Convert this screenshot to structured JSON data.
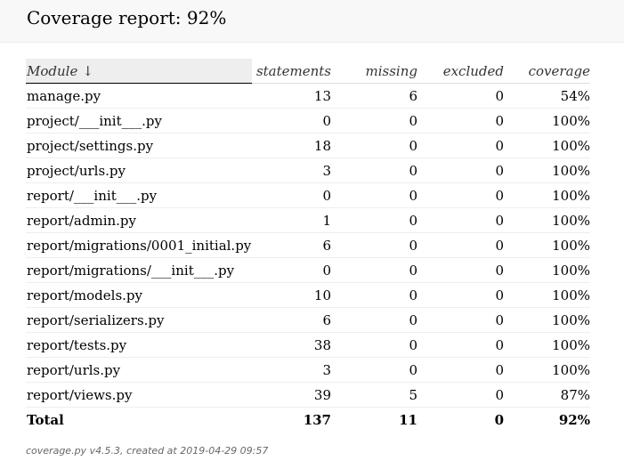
{
  "header": {
    "title": "Coverage report: 92%"
  },
  "table": {
    "columns": {
      "module": "Module",
      "sort_indicator": "↓",
      "statements": "statements",
      "missing": "missing",
      "excluded": "excluded",
      "coverage": "coverage"
    },
    "rows": [
      {
        "module": "manage.py",
        "statements": "13",
        "missing": "6",
        "excluded": "0",
        "coverage": "54%"
      },
      {
        "module": "project/___init___.py",
        "statements": "0",
        "missing": "0",
        "excluded": "0",
        "coverage": "100%"
      },
      {
        "module": "project/settings.py",
        "statements": "18",
        "missing": "0",
        "excluded": "0",
        "coverage": "100%"
      },
      {
        "module": "project/urls.py",
        "statements": "3",
        "missing": "0",
        "excluded": "0",
        "coverage": "100%"
      },
      {
        "module": "report/___init___.py",
        "statements": "0",
        "missing": "0",
        "excluded": "0",
        "coverage": "100%"
      },
      {
        "module": "report/admin.py",
        "statements": "1",
        "missing": "0",
        "excluded": "0",
        "coverage": "100%"
      },
      {
        "module": "report/migrations/0001_initial.py",
        "statements": "6",
        "missing": "0",
        "excluded": "0",
        "coverage": "100%"
      },
      {
        "module": "report/migrations/___init___.py",
        "statements": "0",
        "missing": "0",
        "excluded": "0",
        "coverage": "100%"
      },
      {
        "module": "report/models.py",
        "statements": "10",
        "missing": "0",
        "excluded": "0",
        "coverage": "100%"
      },
      {
        "module": "report/serializers.py",
        "statements": "6",
        "missing": "0",
        "excluded": "0",
        "coverage": "100%"
      },
      {
        "module": "report/tests.py",
        "statements": "38",
        "missing": "0",
        "excluded": "0",
        "coverage": "100%"
      },
      {
        "module": "report/urls.py",
        "statements": "3",
        "missing": "0",
        "excluded": "0",
        "coverage": "100%"
      },
      {
        "module": "report/views.py",
        "statements": "39",
        "missing": "5",
        "excluded": "0",
        "coverage": "87%"
      }
    ],
    "total": {
      "module": "Total",
      "statements": "137",
      "missing": "11",
      "excluded": "0",
      "coverage": "92%"
    }
  },
  "footer": {
    "text": "coverage.py v4.5.3, created at 2019-04-29 09:57"
  }
}
